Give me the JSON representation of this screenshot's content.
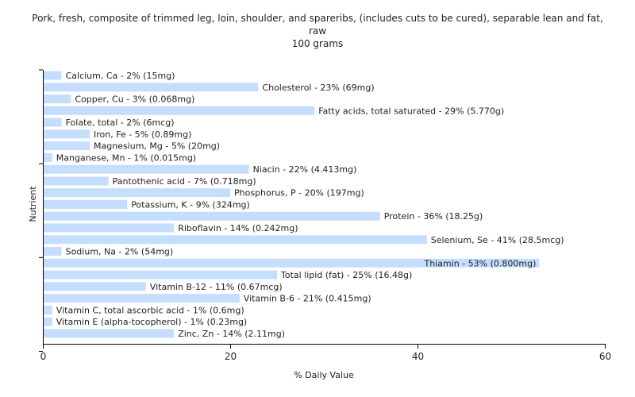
{
  "chart_data": {
    "type": "bar",
    "orientation": "horizontal",
    "title": "Pork, fresh, composite of trimmed leg, loin, shoulder, and spareribs, (includes cuts to be cured), separable lean and fat, raw",
    "title_lines": [
      "Pork, fresh, composite of trimmed leg, loin, shoulder, and spareribs, (includes cuts to be cured), separable lean and fat,",
      "raw"
    ],
    "subtitle": "100 grams",
    "xlabel": "% Daily Value",
    "ylabel": "Nutrient",
    "xlim": [
      0,
      60
    ],
    "xticks": [
      0,
      20,
      40,
      60
    ],
    "grid": false,
    "bar_color": "#c5deff",
    "categories": [
      "Calcium, Ca",
      "Cholesterol",
      "Copper, Cu",
      "Fatty acids, total saturated",
      "Folate, total",
      "Iron, Fe",
      "Magnesium, Mg",
      "Manganese, Mn",
      "Niacin",
      "Pantothenic acid",
      "Phosphorus, P",
      "Potassium, K",
      "Protein",
      "Riboflavin",
      "Selenium, Se",
      "Sodium, Na",
      "Thiamin",
      "Total lipid (fat)",
      "Vitamin B-12",
      "Vitamin B-6",
      "Vitamin C, total ascorbic acid",
      "Vitamin E (alpha-tocopherol)",
      "Zinc, Zn"
    ],
    "values": [
      2,
      23,
      3,
      29,
      2,
      5,
      5,
      1,
      22,
      7,
      20,
      9,
      36,
      14,
      41,
      2,
      53,
      25,
      11,
      21,
      1,
      1,
      14
    ],
    "labels": [
      "Calcium, Ca - 2% (15mg)",
      "Cholesterol - 23% (69mg)",
      "Copper, Cu - 3% (0.068mg)",
      "Fatty acids, total saturated - 29% (5.770g)",
      "Folate, total - 2% (6mcg)",
      "Iron, Fe - 5% (0.89mg)",
      "Magnesium, Mg - 5% (20mg)",
      "Manganese, Mn - 1% (0.015mg)",
      "Niacin - 22% (4.413mg)",
      "Pantothenic acid - 7% (0.718mg)",
      "Phosphorus, P - 20% (197mg)",
      "Potassium, K - 9% (324mg)",
      "Protein - 36% (18.25g)",
      "Riboflavin - 14% (0.242mg)",
      "Selenium, Se - 41% (28.5mcg)",
      "Sodium, Na - 2% (54mg)",
      "Thiamin - 53% (0.800mg)",
      "Total lipid (fat) - 25% (16.48g)",
      "Vitamin B-12 - 11% (0.67mcg)",
      "Vitamin B-6 - 21% (0.415mg)",
      "Vitamin C, total ascorbic acid - 1% (0.6mg)",
      "Vitamin E (alpha-tocopherol) - 1% (0.23mg)",
      "Zinc, Zn - 14% (2.11mg)"
    ]
  }
}
